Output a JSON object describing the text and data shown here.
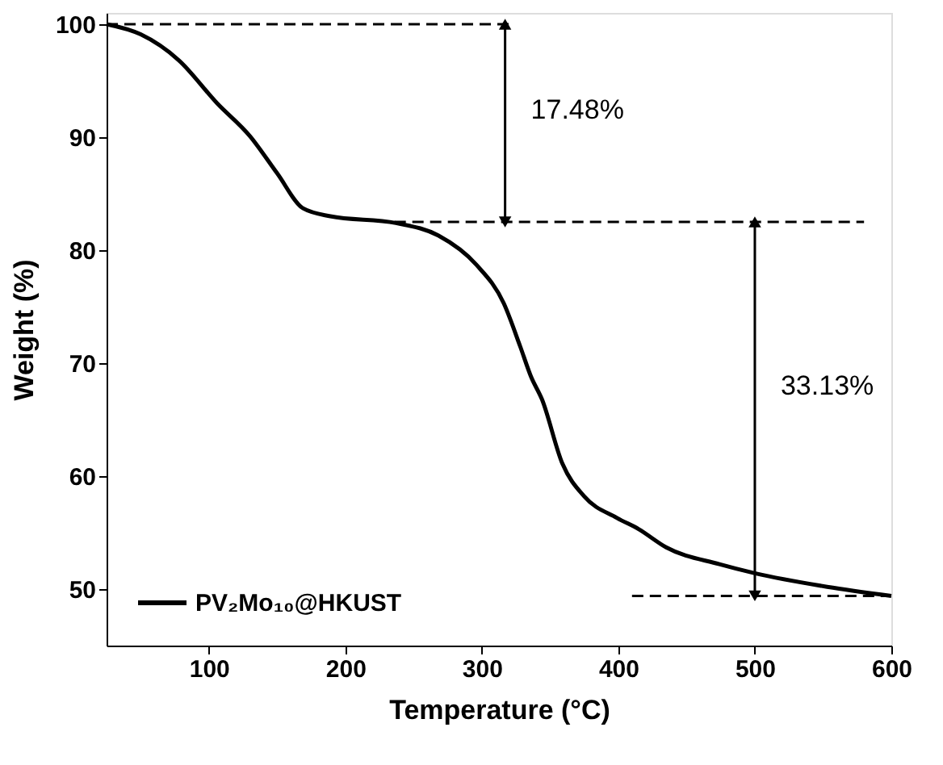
{
  "chart_data": {
    "type": "line",
    "xlabel": "Temperature (°C)",
    "ylabel": "Weight (%)",
    "xlim": [
      25,
      600
    ],
    "ylim": [
      45,
      101
    ],
    "xticks": [
      100,
      200,
      300,
      400,
      500,
      600
    ],
    "yticks": [
      50,
      60,
      70,
      80,
      90,
      100
    ],
    "grid": false,
    "legend": "bottom left",
    "line_style": "solid",
    "marker": "none",
    "series": [
      {
        "name": "PV₂Mo₁₀@HKUST",
        "color": "#000000",
        "x": [
          25,
          50,
          78,
          106,
          130,
          150,
          169,
          189,
          237,
          268,
          296,
          316,
          328,
          336,
          344,
          359,
          375,
          399,
          415,
          435,
          474,
          500,
          553,
          600
        ],
        "values": [
          100,
          99.1,
          96.8,
          93,
          90.1,
          86.8,
          83.7,
          83,
          82.4,
          81.3,
          78.7,
          75.3,
          71.5,
          68.8,
          66.8,
          61.1,
          58.2,
          56.3,
          55.3,
          53.7,
          52.2,
          51.4,
          50.2,
          49.4
        ]
      },
      {
        "color": "#000000",
        "line_style": "dashed",
        "x": [
          25,
          320
        ],
        "values": [
          100,
          100
        ]
      },
      {
        "color": "#000000",
        "line_style": "dashed",
        "x": [
          236,
          580
        ],
        "values": [
          82.5,
          82.5
        ]
      },
      {
        "color": "#000000",
        "line_style": "dashed",
        "x": [
          410,
          600
        ],
        "values": [
          49.4,
          49.4
        ]
      },
      {
        "color": "#000000",
        "marker": "triangle",
        "x": [
          317,
          317
        ],
        "values": [
          100,
          82.5
        ]
      },
      {
        "color": "#000000",
        "marker": "triangle",
        "x": [
          500,
          500
        ],
        "values": [
          82.5,
          49.4
        ]
      }
    ],
    "annotations": [
      "17.48%",
      "33.13%"
    ]
  }
}
